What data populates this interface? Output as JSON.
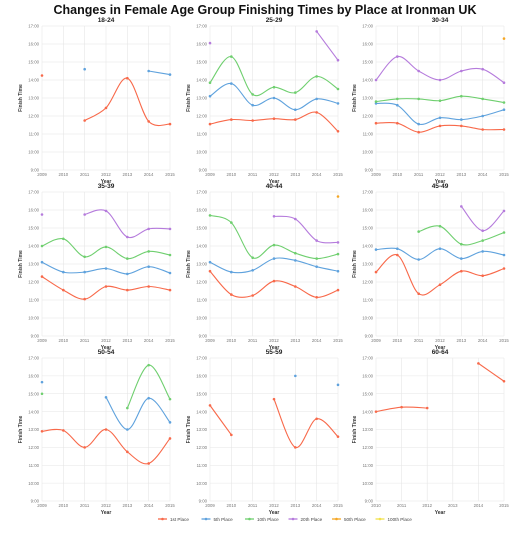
{
  "title": "Changes in Female Age Group Finishing Times by Place at Ironman UK",
  "colors": {
    "1st Place": "#f8694a",
    "5th Place": "#5fa2dd",
    "10th Place": "#6fcf6f",
    "20th Place": "#b57bdc",
    "50th Place": "#f5a623",
    "100th Place": "#f2e24a"
  },
  "chart_data": [
    {
      "type": "line",
      "title": "18-24",
      "xlabel": "Year",
      "ylabel": "Finish Time",
      "x": [
        "2009",
        "2010",
        "2011",
        "2012",
        "2013",
        "2014",
        "2015"
      ],
      "yticks": [
        "9:00",
        "10:00",
        "11:00",
        "12:00",
        "13:00",
        "14:00",
        "15:00",
        "16:00",
        "17:00"
      ],
      "ylim": [
        "9:00",
        "17:00"
      ],
      "series": [
        {
          "name": "1st Place",
          "values": [
            14.25,
            null,
            11.75,
            12.45,
            14.1,
            11.7,
            11.55
          ]
        },
        {
          "name": "5th Place",
          "values": [
            null,
            null,
            14.6,
            null,
            null,
            14.5,
            14.3
          ]
        }
      ]
    },
    {
      "type": "line",
      "title": "25-29",
      "xlabel": "Year",
      "ylabel": "Finish Time",
      "x": [
        "2009",
        "2010",
        "2011",
        "2012",
        "2013",
        "2014",
        "2015"
      ],
      "yticks": [
        "9:00",
        "10:00",
        "11:00",
        "12:00",
        "13:00",
        "14:00",
        "15:00",
        "16:00",
        "17:00"
      ],
      "ylim": [
        "9:00",
        "17:00"
      ],
      "series": [
        {
          "name": "1st Place",
          "values": [
            11.55,
            11.8,
            11.75,
            11.85,
            11.8,
            12.2,
            11.15
          ]
        },
        {
          "name": "5th Place",
          "values": [
            13.1,
            13.8,
            12.6,
            13.0,
            12.35,
            12.95,
            12.7
          ]
        },
        {
          "name": "10th Place",
          "values": [
            13.85,
            15.3,
            13.2,
            13.6,
            13.3,
            14.2,
            13.5
          ]
        },
        {
          "name": "20th Place",
          "values": [
            16.05,
            null,
            null,
            null,
            null,
            16.7,
            15.1
          ]
        }
      ]
    },
    {
      "type": "line",
      "title": "30-34",
      "xlabel": "Year",
      "ylabel": "Finish Time",
      "x": [
        "2009",
        "2010",
        "2011",
        "2012",
        "2013",
        "2014",
        "2015"
      ],
      "yticks": [
        "9:00",
        "10:00",
        "11:00",
        "12:00",
        "13:00",
        "14:00",
        "15:00",
        "16:00",
        "17:00"
      ],
      "ylim": [
        "9:00",
        "17:00"
      ],
      "series": [
        {
          "name": "1st Place",
          "values": [
            11.6,
            11.6,
            11.1,
            11.45,
            11.45,
            11.25,
            11.25
          ]
        },
        {
          "name": "5th Place",
          "values": [
            12.7,
            12.6,
            11.55,
            11.9,
            11.8,
            12.0,
            12.35
          ]
        },
        {
          "name": "10th Place",
          "values": [
            12.8,
            12.95,
            12.95,
            12.85,
            13.1,
            12.95,
            12.75
          ]
        },
        {
          "name": "20th Place",
          "values": [
            14.0,
            15.3,
            14.5,
            14.0,
            14.5,
            14.6,
            13.85
          ]
        },
        {
          "name": "50th Place",
          "values": [
            null,
            null,
            null,
            null,
            null,
            null,
            16.3
          ]
        }
      ]
    },
    {
      "type": "line",
      "title": "35-39",
      "xlabel": "Year",
      "ylabel": "Finish Time",
      "x": [
        "2009",
        "2010",
        "2011",
        "2012",
        "2013",
        "2014",
        "2015"
      ],
      "yticks": [
        "9:00",
        "10:00",
        "11:00",
        "12:00",
        "13:00",
        "14:00",
        "15:00",
        "16:00",
        "17:00"
      ],
      "ylim": [
        "9:00",
        "17:00"
      ],
      "series": [
        {
          "name": "1st Place",
          "values": [
            12.3,
            11.55,
            11.05,
            11.75,
            11.55,
            11.75,
            11.55
          ]
        },
        {
          "name": "5th Place",
          "values": [
            13.1,
            12.55,
            12.55,
            12.75,
            12.45,
            12.85,
            12.5
          ]
        },
        {
          "name": "10th Place",
          "values": [
            14.0,
            14.4,
            13.4,
            13.95,
            13.3,
            13.7,
            13.5
          ]
        },
        {
          "name": "20th Place",
          "values": [
            15.75,
            null,
            15.75,
            15.95,
            14.5,
            14.95,
            14.95
          ]
        }
      ]
    },
    {
      "type": "line",
      "title": "40-44",
      "xlabel": "Year",
      "ylabel": "Finish Time",
      "x": [
        "2009",
        "2010",
        "2011",
        "2012",
        "2013",
        "2014",
        "2015"
      ],
      "yticks": [
        "9:00",
        "10:00",
        "11:00",
        "12:00",
        "13:00",
        "14:00",
        "15:00",
        "16:00",
        "17:00"
      ],
      "ylim": [
        "9:00",
        "17:00"
      ],
      "series": [
        {
          "name": "1st Place",
          "values": [
            12.6,
            11.3,
            11.25,
            12.05,
            11.75,
            11.15,
            11.55
          ]
        },
        {
          "name": "5th Place",
          "values": [
            13.1,
            12.55,
            12.65,
            13.3,
            13.2,
            12.85,
            12.6
          ]
        },
        {
          "name": "10th Place",
          "values": [
            15.7,
            15.3,
            13.35,
            14.05,
            13.6,
            13.3,
            13.55
          ]
        },
        {
          "name": "20th Place",
          "values": [
            null,
            null,
            null,
            15.65,
            15.5,
            14.3,
            14.2
          ]
        },
        {
          "name": "50th Place",
          "values": [
            null,
            null,
            null,
            null,
            null,
            null,
            16.75
          ]
        }
      ]
    },
    {
      "type": "line",
      "title": "45-49",
      "xlabel": "Year",
      "ylabel": "Finish Time",
      "x": [
        "2009",
        "2010",
        "2011",
        "2012",
        "2013",
        "2014",
        "2015"
      ],
      "yticks": [
        "9:00",
        "10:00",
        "11:00",
        "12:00",
        "13:00",
        "14:00",
        "15:00",
        "16:00",
        "17:00"
      ],
      "ylim": [
        "9:00",
        "17:00"
      ],
      "series": [
        {
          "name": "1st Place",
          "values": [
            12.55,
            13.5,
            11.35,
            11.85,
            12.6,
            12.35,
            12.75
          ]
        },
        {
          "name": "5th Place",
          "values": [
            13.8,
            13.85,
            13.25,
            13.85,
            13.3,
            13.7,
            13.5
          ]
        },
        {
          "name": "10th Place",
          "values": [
            null,
            null,
            14.8,
            15.1,
            14.1,
            14.3,
            14.75
          ]
        },
        {
          "name": "20th Place",
          "values": [
            null,
            null,
            null,
            null,
            16.2,
            14.85,
            15.95
          ]
        }
      ]
    },
    {
      "type": "line",
      "title": "50-54",
      "xlabel": "Year",
      "ylabel": "Finish Time",
      "x": [
        "2009",
        "2010",
        "2011",
        "2012",
        "2013",
        "2014",
        "2015"
      ],
      "yticks": [
        "9:00",
        "10:00",
        "11:00",
        "12:00",
        "13:00",
        "14:00",
        "15:00",
        "16:00",
        "17:00"
      ],
      "ylim": [
        "9:00",
        "17:00"
      ],
      "series": [
        {
          "name": "1st Place",
          "values": [
            12.9,
            12.95,
            12.0,
            13.0,
            11.75,
            11.1,
            12.5
          ]
        },
        {
          "name": "5th Place",
          "values": [
            15.65,
            null,
            null,
            14.8,
            13.0,
            14.75,
            13.4
          ]
        },
        {
          "name": "10th Place",
          "values": [
            15.0,
            null,
            null,
            null,
            14.2,
            16.6,
            14.7
          ]
        }
      ]
    },
    {
      "type": "line",
      "title": "55-59",
      "xlabel": "Year",
      "ylabel": "Finish Time",
      "x": [
        "2009",
        "2010",
        "2011",
        "2012",
        "2013",
        "2014",
        "2015"
      ],
      "yticks": [
        "9:00",
        "10:00",
        "11:00",
        "12:00",
        "13:00",
        "14:00",
        "15:00",
        "16:00",
        "17:00"
      ],
      "ylim": [
        "9:00",
        "17:00"
      ],
      "series": [
        {
          "name": "1st Place",
          "values": [
            14.35,
            12.7,
            null,
            14.7,
            12.0,
            13.6,
            12.6
          ]
        },
        {
          "name": "5th Place",
          "values": [
            null,
            null,
            null,
            null,
            16.0,
            null,
            15.5
          ]
        }
      ]
    },
    {
      "type": "line",
      "title": "60-64",
      "xlabel": "Year",
      "ylabel": "Finish Time",
      "x": [
        "2010",
        "2011",
        "2012",
        "2013",
        "2014",
        "2015"
      ],
      "yticks": [
        "9:00",
        "10:00",
        "11:00",
        "12:00",
        "13:00",
        "14:00",
        "15:00",
        "16:00",
        "17:00"
      ],
      "ylim": [
        "9:00",
        "17:00"
      ],
      "series": [
        {
          "name": "1st Place",
          "values": [
            14.0,
            14.25,
            14.2,
            null,
            16.7,
            15.7
          ]
        }
      ]
    }
  ],
  "legend": {
    "placement": "bottom",
    "items": [
      "1st Place",
      "5th Place",
      "10th Place",
      "20th Place",
      "50th Place",
      "100th Place"
    ]
  }
}
